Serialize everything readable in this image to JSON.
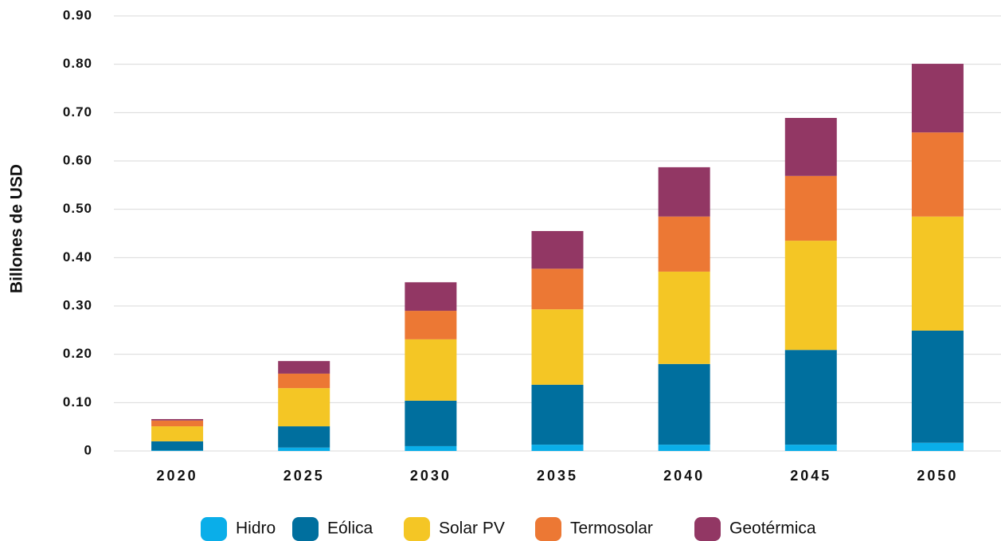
{
  "chart_data": {
    "type": "stacked_bar",
    "y_axis_label": "Billones de USD",
    "categories": [
      "2020",
      "2025",
      "2030",
      "2035",
      "2040",
      "2045",
      "2050"
    ],
    "series": [
      {
        "name": "Hidro",
        "color": "#0aaee9",
        "values": [
          0.001,
          0.007,
          0.01,
          0.013,
          0.013,
          0.013,
          0.017
        ]
      },
      {
        "name": "Eólica",
        "color": "#006f9e",
        "values": [
          0.019,
          0.044,
          0.094,
          0.124,
          0.167,
          0.196,
          0.232
        ]
      },
      {
        "name": "Solar PV",
        "color": "#f4c625",
        "values": [
          0.031,
          0.079,
          0.127,
          0.156,
          0.191,
          0.226,
          0.236
        ]
      },
      {
        "name": "Termosolar",
        "color": "#ec7834",
        "values": [
          0.012,
          0.03,
          0.059,
          0.084,
          0.114,
          0.134,
          0.174
        ]
      },
      {
        "name": "Geotérmica",
        "color": "#923764",
        "values": [
          0.003,
          0.026,
          0.059,
          0.078,
          0.102,
          0.12,
          0.142
        ]
      }
    ],
    "ylim": [
      0,
      0.9
    ],
    "yticks": [
      0,
      {
        "value": 0.1,
        "label": "0.10"
      },
      {
        "value": 0.2,
        "label": "0.20"
      },
      {
        "value": 0.3,
        "label": "0.30"
      },
      {
        "value": 0.4,
        "label": "0.40"
      },
      {
        "value": 0.5,
        "label": "0.50"
      },
      {
        "value": 0.6,
        "label": "0.60"
      },
      {
        "value": 0.7,
        "label": "0.70"
      },
      {
        "value": 0.8,
        "label": "0.80"
      },
      {
        "value": 0.9,
        "label": "0.90"
      }
    ],
    "grid": true,
    "legend": "bottom"
  }
}
